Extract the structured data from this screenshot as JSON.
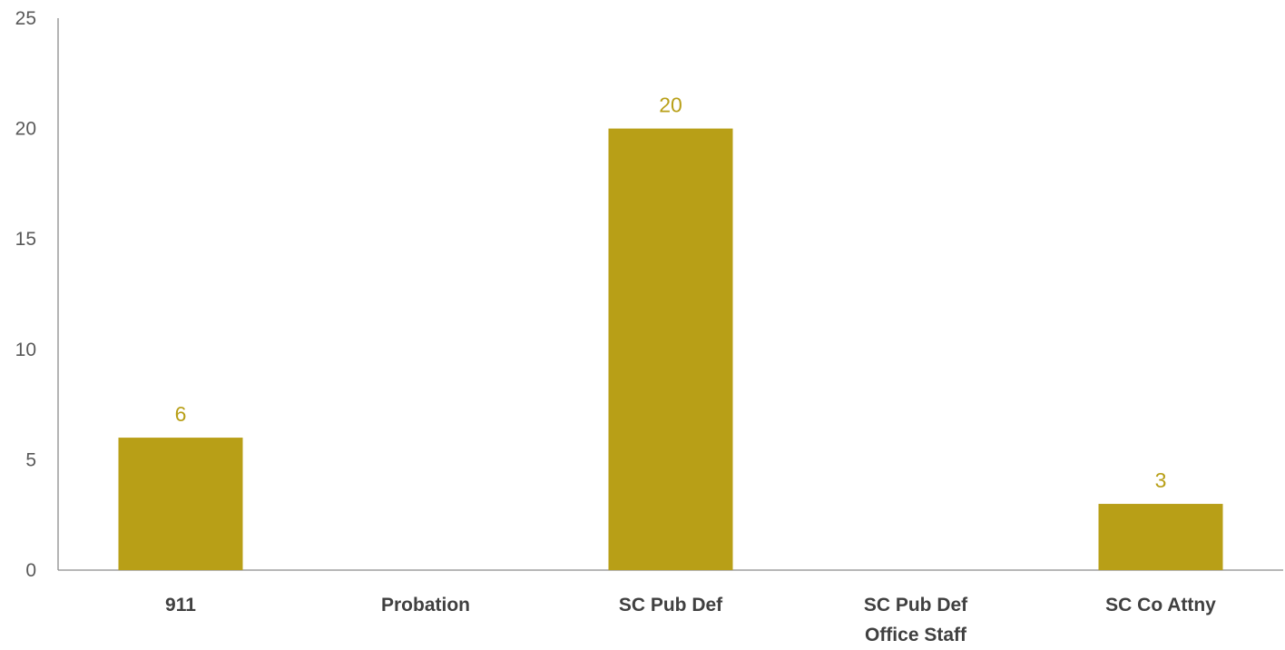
{
  "chart_data": {
    "type": "bar",
    "categories": [
      [
        "911"
      ],
      [
        "Probation"
      ],
      [
        "SC Pub Def"
      ],
      [
        "SC Pub Def",
        "Office Staff"
      ],
      [
        "SC Co Attny"
      ]
    ],
    "values": [
      6,
      0,
      20,
      0,
      3
    ],
    "data_labels": [
      "6",
      "",
      "20",
      "",
      "3"
    ],
    "yticks": [
      "0",
      "5",
      "10",
      "15",
      "20",
      "25"
    ],
    "ylim": [
      0,
      25
    ],
    "title": "",
    "xlabel": "",
    "ylabel": "",
    "grid": false,
    "legend": "none",
    "colors": {
      "bar": "#b89f17",
      "label": "#b89f17",
      "axis": "#8c8c8c"
    }
  }
}
